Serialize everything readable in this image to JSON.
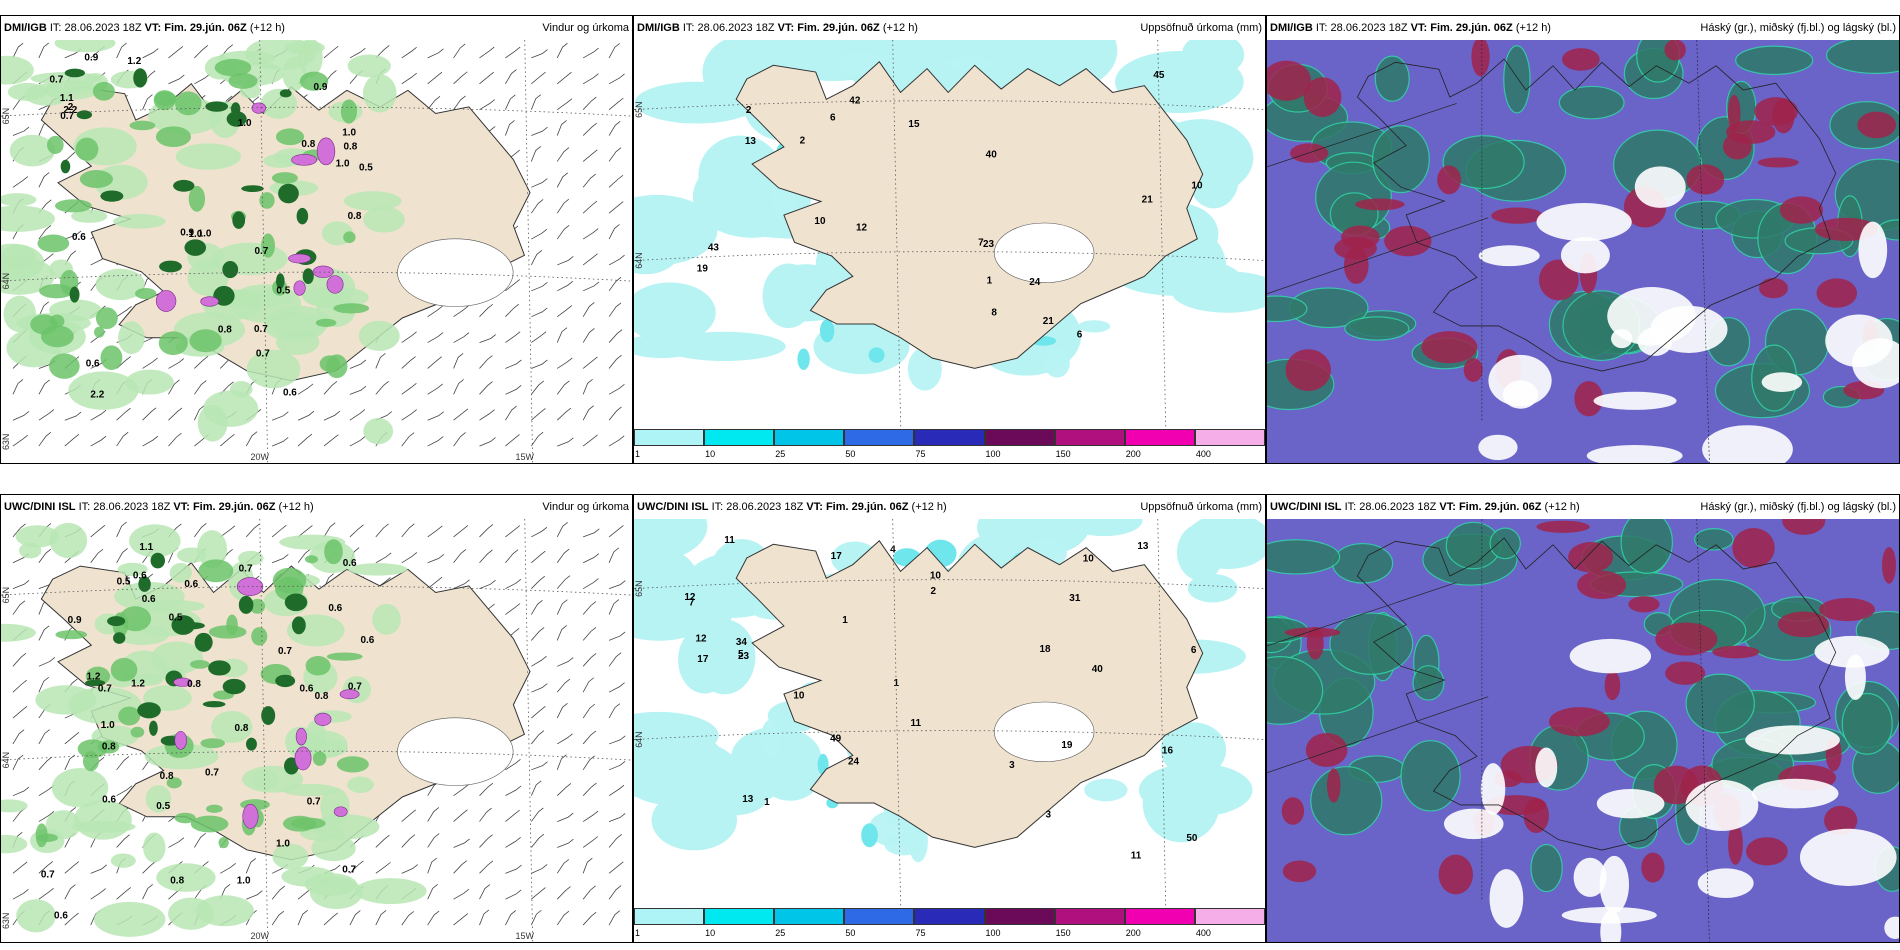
{
  "colors": {
    "land": "#efe3d0",
    "sea": "#ffffff",
    "precip_light": "#b9e6b4",
    "precip_mid": "#6cc36a",
    "precip_dark": "#1f6b2a",
    "snow": "#d070d8",
    "cumul_base": "#b8f3f4",
    "cumul_mid": "#6fe6ec",
    "cloud_high": "#6a63c8",
    "cloud_mid": "#2f7a6a",
    "cloud_low": "#a0234a"
  },
  "colorbar": {
    "labels": [
      "1",
      "10",
      "25",
      "50",
      "75",
      "100",
      "150",
      "200",
      "400"
    ],
    "colors": [
      "#aef4f6",
      "#00e8f0",
      "#00c4e8",
      "#2f6ae6",
      "#2a2ab8",
      "#6a0a58",
      "#b0107e",
      "#f000b0",
      "#f6aee8"
    ]
  },
  "panels": [
    {
      "model": "DMI/IGB",
      "it_label": "IT:",
      "it": "28.06.2023 18Z",
      "vt": "VT: Fim. 29.jún. 06Z",
      "lead": "(+12 h)",
      "title": "Vindur og úrkoma",
      "lat_labels": [
        "65N",
        "64N",
        "63N"
      ],
      "lon_labels": [
        "20W",
        "15W"
      ],
      "values": [
        "0.8",
        "0.5",
        "0.6",
        "0.8",
        "1.1",
        "2.2",
        "1.2",
        "0.6",
        "1.0",
        "2.2",
        "0.8",
        "0.7",
        "1.0",
        "1.0",
        "0.8",
        "1.0",
        "0.7",
        "0.7",
        "0.9",
        "0.7",
        "0.9",
        "0.9",
        "0.7",
        "0.5",
        "1.0",
        "2",
        "0.6"
      ]
    },
    {
      "model": "DMI/IGB",
      "it_label": "IT:",
      "it": "28.06.2023 18Z",
      "vt": "VT: Fim. 29.jún. 06Z",
      "lead": "(+12 h)",
      "title": "Uppsöfnuð úrkoma (mm)",
      "lat_labels": [
        "65N",
        "64N"
      ],
      "lon_labels": [],
      "values": [
        "6",
        "10",
        "24",
        "40",
        "15",
        "23",
        "6",
        "7",
        "8",
        "2",
        "21",
        "19",
        "43",
        "13",
        "10",
        "21",
        "2",
        "1",
        "45",
        "42",
        "12"
      ]
    },
    {
      "model": "DMI/IGB",
      "it_label": "IT:",
      "it": "28.06.2023 18Z",
      "vt": "VT: Fim. 29.jún. 06Z",
      "lead": "(+12 h)",
      "title": "Háský (gr.), miðský (fj.bl.) og lágský (bl.)",
      "lat_labels": [],
      "lon_labels": [],
      "values": []
    },
    {
      "model": "UWC/DINI ISL",
      "it_label": "IT:",
      "it": "28.06.2023 18Z",
      "vt": "VT: Fim. 29.jún. 06Z",
      "lead": "(+12 h)",
      "title": "Vindur og úrkoma",
      "lat_labels": [
        "65N",
        "64N",
        "63N"
      ],
      "lon_labels": [
        "20W",
        "15W"
      ],
      "values": [
        "0.6",
        "0.7",
        "0.6",
        "0.8",
        "1.2",
        "0.7",
        "0.5",
        "0.7",
        "1.0",
        "0.6",
        "0.7",
        "1.1",
        "0.6",
        "0.8",
        "0.8",
        "0.5",
        "0.7",
        "0.7",
        "0.6",
        "0.8",
        "1.0",
        "1.2",
        "0.8",
        "0.6",
        "0.5",
        "0.6",
        "0.9",
        "1.0",
        "0.7",
        "0.7",
        "0.8",
        "0.6",
        "0.6"
      ]
    },
    {
      "model": "UWC/DINI ISL",
      "it_label": "IT:",
      "it": "28.06.2023 18Z",
      "vt": "VT: Fim. 29.jún. 06Z",
      "lead": "(+12 h)",
      "title": "Uppsöfnuð úrkoma (mm)",
      "lat_labels": [
        "65N",
        "64N"
      ],
      "lon_labels": [],
      "values": [
        "12",
        "11",
        "11",
        "1",
        "3",
        "13",
        "24",
        "19",
        "4",
        "5",
        "10",
        "17",
        "13",
        "10",
        "23",
        "18",
        "17",
        "6",
        "34",
        "12",
        "16",
        "10",
        "31",
        "49",
        "50",
        "40",
        "11",
        "7",
        "2",
        "3",
        "1",
        "1"
      ]
    },
    {
      "model": "UWC/DINI ISL",
      "it_label": "IT:",
      "it": "28.06.2023 18Z",
      "vt": "VT: Fim. 29.jún. 06Z",
      "lead": "(+12 h)",
      "title": "Háský (gr.), miðský (fj.bl.) og lágský (bl.)",
      "lat_labels": [],
      "lon_labels": [],
      "values": []
    }
  ]
}
